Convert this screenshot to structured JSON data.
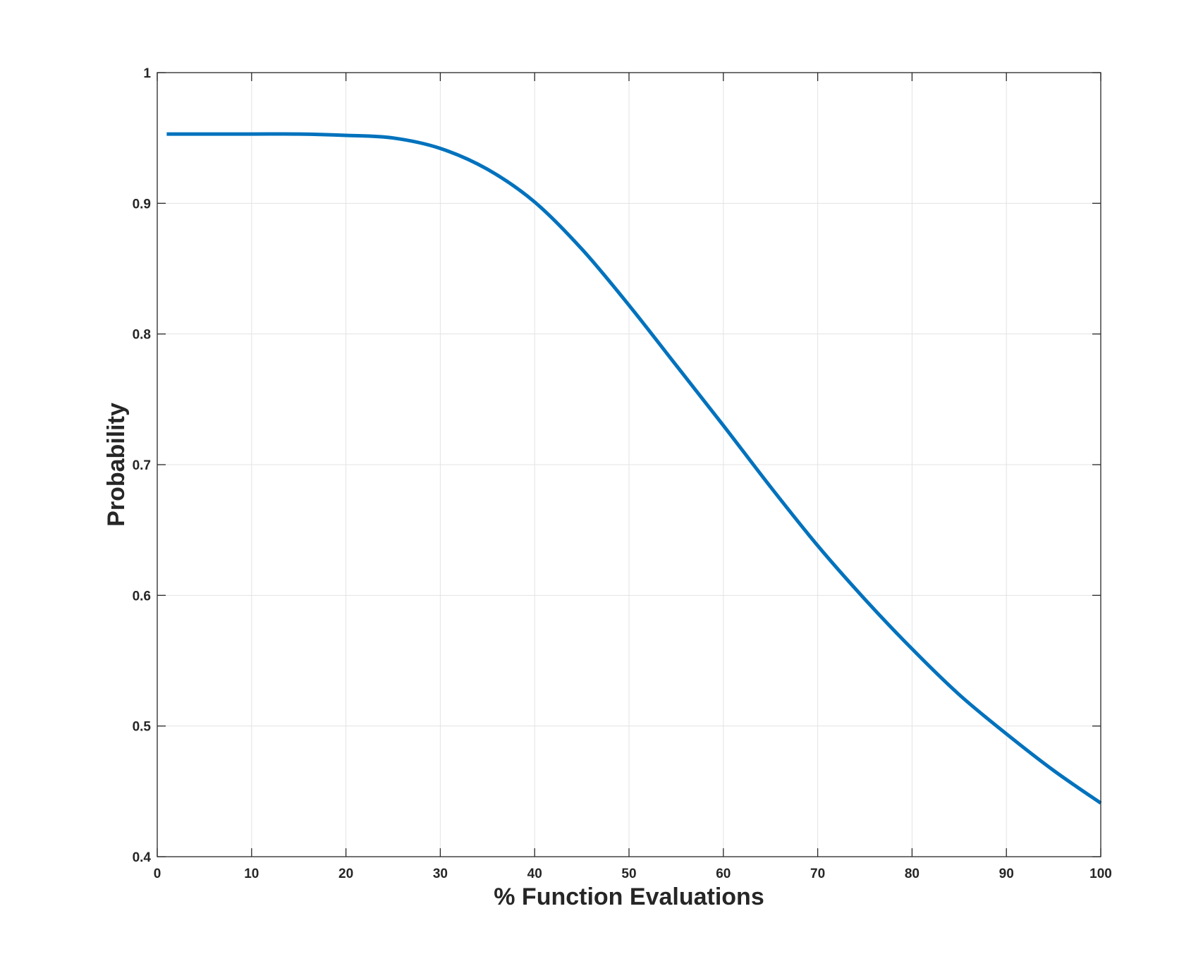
{
  "chart_data": {
    "type": "line",
    "title": "",
    "xlabel": "% Function Evaluations",
    "ylabel": "Probability",
    "xlim": [
      0,
      100
    ],
    "ylim": [
      0.4,
      1
    ],
    "grid": true,
    "x_ticks": [
      0,
      10,
      20,
      30,
      40,
      50,
      60,
      70,
      80,
      90,
      100
    ],
    "x_tick_labels": [
      "0",
      "10",
      "20",
      "30",
      "40",
      "50",
      "60",
      "70",
      "80",
      "90",
      "100"
    ],
    "y_ticks": [
      0.4,
      0.5,
      0.6,
      0.7,
      0.8,
      0.9,
      1
    ],
    "y_tick_labels": [
      "0.4",
      "0.5",
      "0.6",
      "0.7",
      "0.8",
      "0.9",
      "1"
    ],
    "series": [
      {
        "color": "#0072BD",
        "x": [
          1,
          10,
          15,
          20,
          25,
          30,
          35,
          40,
          45,
          50,
          55,
          60,
          65,
          70,
          75,
          80,
          85,
          90,
          95,
          100
        ],
        "y": [
          0.953,
          0.953,
          0.953,
          0.952,
          0.95,
          0.942,
          0.926,
          0.901,
          0.865,
          0.822,
          0.776,
          0.73,
          0.683,
          0.638,
          0.597,
          0.559,
          0.524,
          0.494,
          0.466,
          0.441
        ]
      }
    ]
  }
}
